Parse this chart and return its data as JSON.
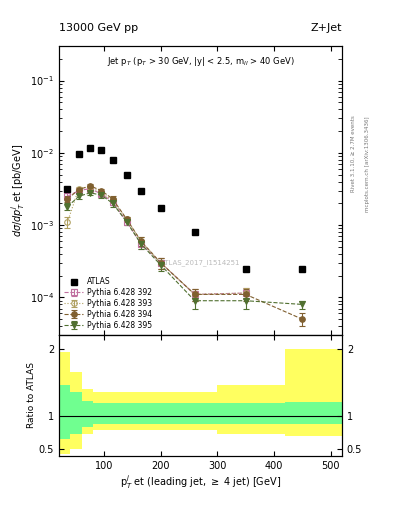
{
  "title_left": "13000 GeV pp",
  "title_right": "Z+Jet",
  "subtitle": "Jet p$_T$ (p$_T$ > 30 GeV, |y| < 2.5, m$_{ll}$ > 40 GeV)",
  "ylabel_main": "dσ/dp$_T^j$ et [pb/GeV]",
  "xlabel": "p$_T^j$ et (leading jet, ≥ 4 jet) [GeV]",
  "ylabel_ratio": "Ratio to ATLAS",
  "right_label1": "Rivet 3.1.10, ≥ 2.7M events",
  "right_label2": "mcplots.cern.ch [arXiv:1306.3436]",
  "watermark": "ATLAS_2017_I1514251",
  "atlas_data_x": [
    35,
    55,
    75,
    95,
    115,
    140,
    165,
    200,
    260,
    350,
    450
  ],
  "atlas_data_y": [
    0.0032,
    0.0095,
    0.0115,
    0.011,
    0.008,
    0.005,
    0.003,
    0.0017,
    0.0008,
    0.00025,
    0.00025
  ],
  "py392_x": [
    35,
    55,
    75,
    95,
    115,
    140,
    165,
    200,
    260,
    350,
    450
  ],
  "py392_y": [
    0.0025,
    0.003,
    0.0032,
    0.0027,
    0.0021,
    0.0011,
    0.00055,
    0.0003,
    0.00011,
    0.000115,
    null
  ],
  "py393_x": [
    35,
    55,
    75,
    95,
    115,
    140,
    165,
    200,
    260,
    350,
    450
  ],
  "py393_y": [
    0.0011,
    0.0032,
    0.0034,
    0.0028,
    0.0022,
    0.0012,
    0.0006,
    0.0003,
    0.00011,
    0.000115,
    null
  ],
  "py394_x": [
    35,
    55,
    75,
    95,
    115,
    140,
    165,
    200,
    260,
    350,
    450
  ],
  "py394_y": [
    0.0023,
    0.0031,
    0.0035,
    0.003,
    0.0023,
    0.0012,
    0.0006,
    0.0003,
    0.00011,
    0.00011,
    5e-05
  ],
  "py395_x": [
    35,
    55,
    75,
    95,
    115,
    140,
    165,
    200,
    260,
    350,
    450
  ],
  "py395_y": [
    0.0018,
    0.0025,
    0.0028,
    0.0026,
    0.002,
    0.0011,
    0.00055,
    0.00028,
    9e-05,
    9e-05,
    8e-05
  ],
  "py392_yerr": [
    0.0003,
    0.0002,
    0.0002,
    0.0002,
    0.0002,
    0.0001,
    8e-05,
    5e-05,
    2e-05,
    2e-05,
    null
  ],
  "py393_yerr": [
    0.0002,
    0.0002,
    0.0002,
    0.0002,
    0.0002,
    0.0001,
    8e-05,
    5e-05,
    2e-05,
    2e-05,
    null
  ],
  "py394_yerr": [
    0.0002,
    0.0002,
    0.0002,
    0.0002,
    0.0002,
    0.0001,
    8e-05,
    5e-05,
    2e-05,
    2e-05,
    1e-05
  ],
  "py395_yerr": [
    0.0002,
    0.0002,
    0.0002,
    0.0002,
    0.0002,
    0.0001,
    8e-05,
    5e-05,
    2e-05,
    2e-05,
    1e-05
  ],
  "color_atlas": "#000000",
  "color_py392": "#c070a0",
  "color_py393": "#b0a060",
  "color_py394": "#806030",
  "color_py395": "#507030",
  "ratio_bin_edges": [
    20,
    40,
    60,
    80,
    100,
    130,
    160,
    200,
    300,
    420,
    520
  ],
  "ratio_yellow_upper": [
    1.95,
    1.65,
    1.4,
    1.35,
    1.35,
    1.35,
    1.35,
    1.35,
    1.45,
    2.0
  ],
  "ratio_yellow_lower": [
    0.42,
    0.5,
    0.72,
    0.78,
    0.78,
    0.78,
    0.78,
    0.78,
    0.72,
    0.7
  ],
  "ratio_green_upper": [
    1.45,
    1.35,
    1.22,
    1.18,
    1.18,
    1.18,
    1.18,
    1.18,
    1.18,
    1.2
  ],
  "ratio_green_lower": [
    0.65,
    0.72,
    0.83,
    0.88,
    0.88,
    0.88,
    0.88,
    0.88,
    0.88,
    0.88
  ],
  "xlim": [
    20,
    520
  ],
  "ylim_main": [
    3e-05,
    0.3
  ],
  "ylim_ratio": [
    0.4,
    2.2
  ],
  "xmin_plot": 20,
  "xmax_plot": 500
}
